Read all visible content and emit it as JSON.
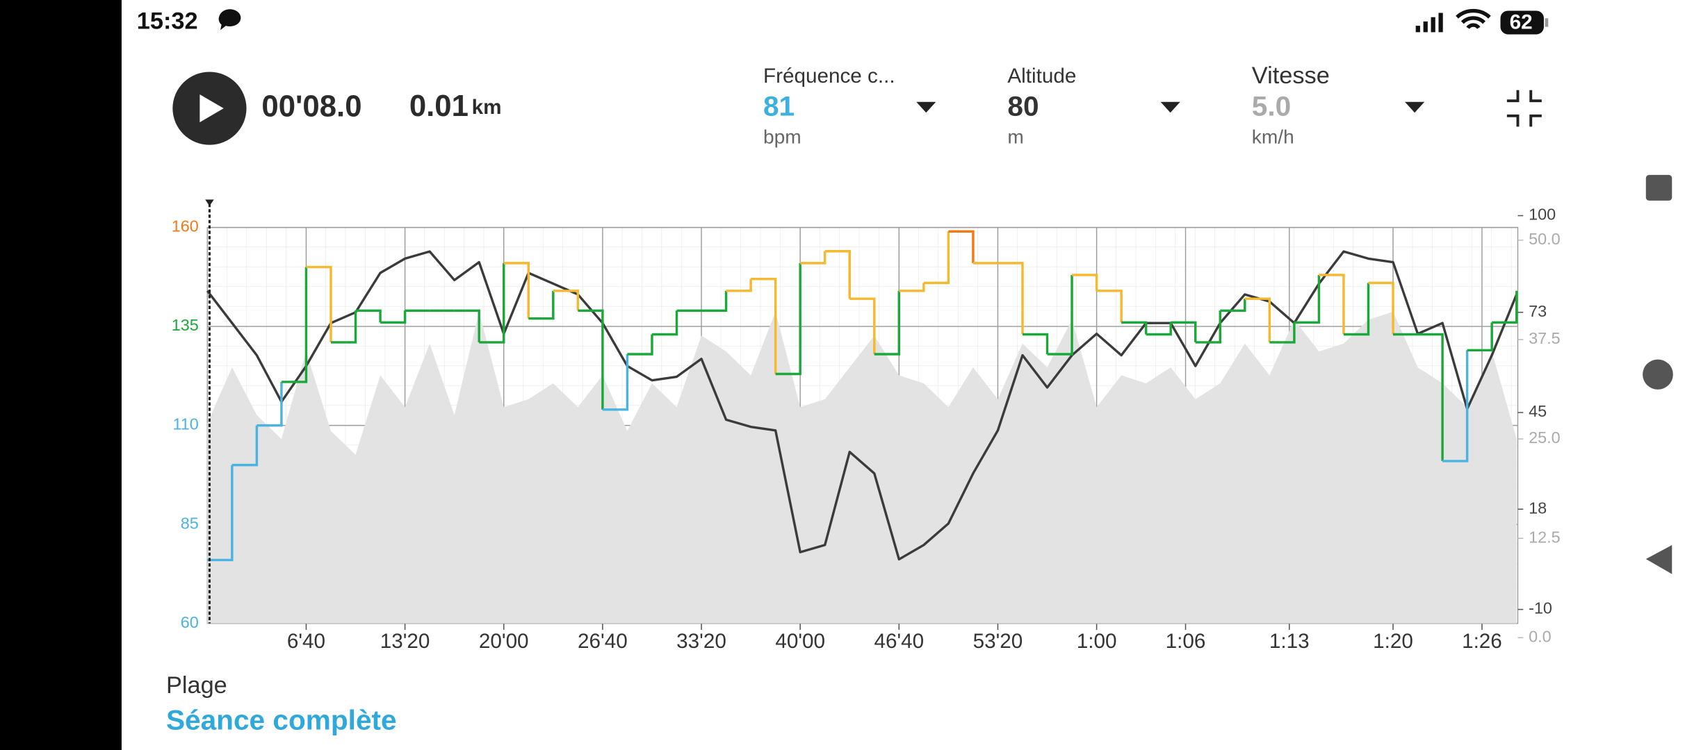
{
  "status": {
    "time": "15:32",
    "battery": "62"
  },
  "header": {
    "elapsed": "00'08.0",
    "distance": "0.01",
    "distance_unit": "km"
  },
  "metrics": [
    {
      "label": "Fréquence c...",
      "value": "81",
      "unit": "bpm",
      "color": "#3db0e0"
    },
    {
      "label": "Altitude",
      "value": "80",
      "unit": "m",
      "color": "#333333"
    },
    {
      "label": "Vitesse",
      "value": "5.0",
      "unit": "km/h",
      "color": "#aaaaaa"
    }
  ],
  "chart_data": {
    "type": "line",
    "x": [
      0,
      100,
      200,
      300,
      400,
      500,
      600,
      700,
      800,
      900,
      1000,
      1100,
      1200,
      1300,
      1400,
      1500,
      1600,
      1700,
      1800,
      1900,
      2000,
      2100,
      2200,
      2300,
      2400,
      2500,
      2600,
      2700,
      2800,
      2900,
      3000,
      3100,
      3200,
      3300,
      3400,
      3500,
      3600,
      3700,
      3800,
      3900,
      4000,
      4100,
      4200,
      4300,
      4400,
      4500,
      4600,
      4700,
      4800,
      4900,
      5000,
      5100,
      5200,
      5300
    ],
    "xlim": [
      0,
      5305
    ],
    "xticks": [
      {
        "value": 400,
        "label": "6'40"
      },
      {
        "value": 800,
        "label": "13'20"
      },
      {
        "value": 1200,
        "label": "20'00"
      },
      {
        "value": 1600,
        "label": "26'40"
      },
      {
        "value": 2000,
        "label": "33'20"
      },
      {
        "value": 2400,
        "label": "40'00"
      },
      {
        "value": 2800,
        "label": "46'40"
      },
      {
        "value": 3200,
        "label": "53'20"
      },
      {
        "value": 3600,
        "label": "1:00"
      },
      {
        "value": 3960,
        "label": "1:06"
      },
      {
        "value": 4380,
        "label": "1:13"
      },
      {
        "value": 4800,
        "label": "1:20"
      },
      {
        "value": 5160,
        "label": "1:26"
      }
    ],
    "ylim": [
      60,
      160
    ],
    "yticks": [
      60,
      85,
      110,
      135,
      160
    ],
    "y2lim": [
      -13.9,
      96.7
    ],
    "y2ticks": [
      -10,
      18,
      45,
      73,
      100
    ],
    "y3lim": [
      1.8,
      51.6
    ],
    "y3ticks": [
      {
        "value": 0,
        "label": "0.0"
      },
      {
        "value": 12.5,
        "label": "12.5"
      },
      {
        "value": 25,
        "label": "25.0"
      },
      {
        "value": 37.5,
        "label": "37.5"
      },
      {
        "value": 50,
        "label": "50.0"
      }
    ],
    "grid": true,
    "series": [
      {
        "name": "Fréquence cardiaque",
        "axis": "y",
        "style": "step",
        "zones": [
          {
            "from": 60,
            "color": "#4ab3df"
          },
          {
            "from": 118,
            "color": "#1aa83a"
          },
          {
            "from": 140,
            "color": "#f5b82e"
          },
          {
            "from": 157,
            "color": "#f07a1a"
          }
        ],
        "values": [
          76,
          100,
          110,
          121,
          150,
          131,
          139,
          136,
          139,
          139,
          139,
          131,
          151,
          137,
          144,
          139,
          114,
          128,
          133,
          139,
          139,
          144,
          147,
          123,
          151,
          154,
          142,
          128,
          144,
          146,
          159,
          151,
          151,
          133,
          128,
          148,
          144,
          136,
          133,
          136,
          131,
          139,
          142,
          131,
          136,
          148,
          133,
          146,
          133,
          133,
          101,
          129,
          136,
          144
        ]
      },
      {
        "name": "Altitude",
        "axis": "y2",
        "color": "#3b3b3b",
        "values": [
          79,
          70,
          61,
          48,
          58,
          70,
          73,
          84,
          88,
          90,
          82,
          87,
          67,
          84,
          81,
          78,
          70,
          58,
          54,
          55,
          60,
          43,
          41,
          40,
          6,
          8,
          34,
          28,
          4,
          8,
          14,
          28,
          40,
          61,
          52,
          61,
          67,
          61,
          70,
          70,
          58,
          70,
          78,
          76,
          70,
          81,
          90,
          88,
          87,
          67,
          70,
          46,
          61,
          78
        ]
      },
      {
        "name": "Vitesse",
        "axis": "y3",
        "style": "area",
        "color": "#e3e3e3",
        "values": [
          27,
          34,
          28,
          25,
          36,
          26,
          23,
          33,
          29,
          37,
          28,
          41,
          29,
          30,
          32,
          29,
          33,
          26,
          32,
          29,
          38,
          36,
          33,
          41,
          29,
          30,
          34,
          38,
          33,
          32,
          29,
          34,
          30,
          37,
          34,
          40,
          29,
          33,
          32,
          34,
          30,
          32,
          37,
          33,
          40,
          36,
          37,
          40,
          41,
          34,
          32,
          29,
          36,
          25
        ]
      }
    ]
  },
  "range": {
    "label": "Plage",
    "value": "Séance complète"
  }
}
